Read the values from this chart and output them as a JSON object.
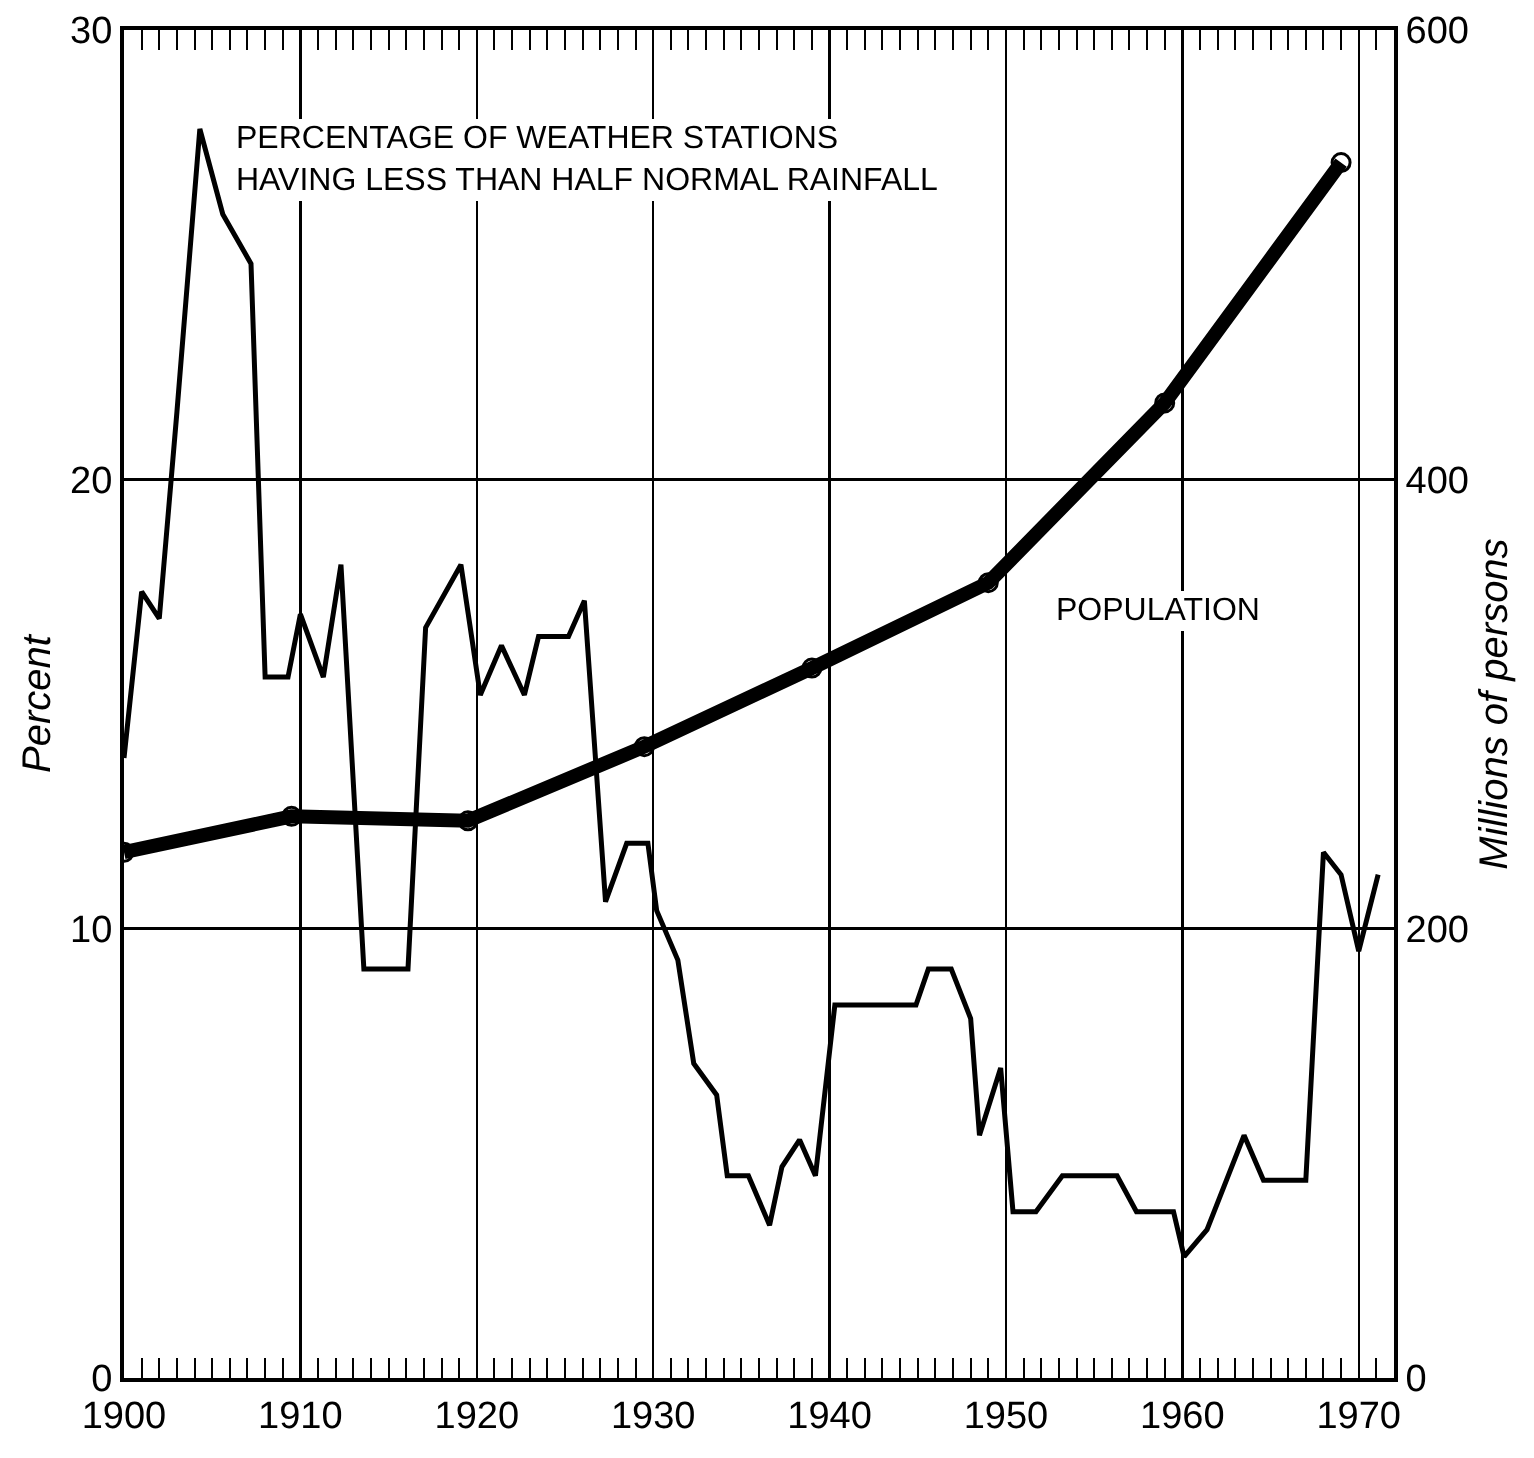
{
  "chart_data": {
    "type": "line",
    "ylabel": "Percent",
    "y2label": "Millions of persons",
    "xlim": [
      1900,
      1972
    ],
    "xticks": [
      1900,
      1910,
      1920,
      1930,
      1940,
      1950,
      1960,
      1970
    ],
    "ylim": [
      0,
      30
    ],
    "yticks": [
      0,
      10,
      20,
      30
    ],
    "y2lim": [
      0,
      600
    ],
    "y2ticks": [
      0,
      200,
      400,
      600
    ],
    "grid": true,
    "legend": false,
    "series": [
      {
        "name": "PERCENTAGE OF WEATHER STATIONS\nHAVING LESS THAN HALF NORMAL RAINFALL",
        "color": "#000000",
        "marker": "none",
        "line_style": "solid",
        "x": [
          1900,
          1901,
          1902,
          1903,
          1904.3,
          1905.6,
          1907.2,
          1908,
          1909.3,
          1910,
          1911.3,
          1912.3,
          1913.6,
          1916.1,
          1917.1,
          1919.1,
          1920.2,
          1921.4,
          1922.7,
          1923.5,
          1925.2,
          1926.1,
          1927.3,
          1928.5,
          1929.7,
          1930.2,
          1931.4,
          1932.3,
          1933.6,
          1934.2,
          1935.4,
          1936.6,
          1937.3,
          1938.3,
          1939.2,
          1940.3,
          1944.9,
          1945.6,
          1946.9,
          1948,
          1948.5,
          1949.7,
          1950.4,
          1951.7,
          1953.2,
          1956.3,
          1957.4,
          1959.5,
          1960.1,
          1961.4,
          1963.5,
          1964.6,
          1967,
          1968,
          1969,
          1970,
          1971.1
        ],
        "values": [
          13.8,
          17.5,
          16.9,
          21.5,
          27.8,
          25.9,
          24.8,
          15.6,
          15.6,
          17,
          15.6,
          18.1,
          9.1,
          9.1,
          16.7,
          18.1,
          15.2,
          16.3,
          15.2,
          16.5,
          16.5,
          17.3,
          10.6,
          11.9,
          11.9,
          10.4,
          9.3,
          7,
          6.3,
          4.5,
          4.5,
          3.4,
          4.7,
          5.3,
          4.5,
          8.3,
          8.3,
          9.1,
          9.1,
          8,
          5.4,
          6.9,
          3.7,
          3.7,
          4.5,
          4.5,
          3.7,
          3.7,
          2.7,
          3.3,
          5.4,
          4.4,
          4.4,
          11.7,
          11.2,
          9.5,
          11.2
        ]
      },
      {
        "name": "POPULATION",
        "color": "#000000",
        "axis": "y2",
        "marker": "circle",
        "line_style": "solid",
        "x": [
          1900,
          1909.5,
          1919.5,
          1929.5,
          1939,
          1949,
          1959,
          1969
        ],
        "values": [
          234,
          250,
          248,
          281,
          316,
          354,
          434,
          541
        ]
      }
    ]
  }
}
